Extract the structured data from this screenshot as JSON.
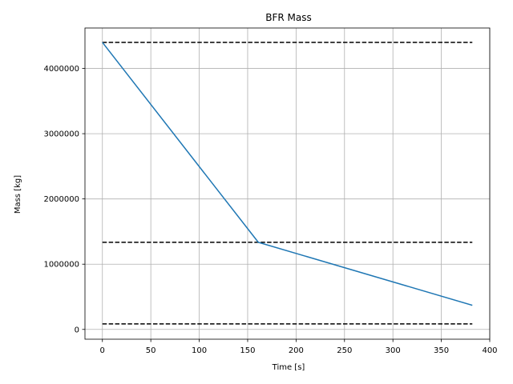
{
  "chart_data": {
    "type": "line",
    "title": "BFR Mass",
    "xlabel": "Time [s]",
    "ylabel": "Mass [kg]",
    "xlim": [
      -18,
      400
    ],
    "ylim": [
      -150000,
      4620000
    ],
    "xticks": [
      0,
      50,
      100,
      150,
      200,
      250,
      300,
      350,
      400
    ],
    "yticks": [
      0,
      1000000,
      2000000,
      3000000,
      4000000
    ],
    "ytick_labels": [
      "0",
      "1000000",
      "2000000",
      "3000000",
      "4000000"
    ],
    "grid": true,
    "series": [
      {
        "color": "#1f77b4",
        "style": "solid",
        "x": [
          0,
          161,
          382
        ],
        "y": [
          4400000,
          1335000,
          370000
        ]
      }
    ],
    "reference_lines": [
      {
        "y": 4400000,
        "x": [
          0,
          382
        ],
        "color": "#000000",
        "style": "dashed"
      },
      {
        "y": 1335000,
        "x": [
          0,
          382
        ],
        "color": "#000000",
        "style": "dashed"
      },
      {
        "y": 85000,
        "x": [
          0,
          382
        ],
        "color": "#000000",
        "style": "dashed"
      }
    ]
  }
}
